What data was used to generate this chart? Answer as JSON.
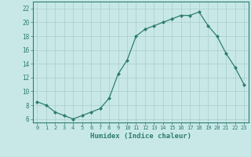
{
  "x": [
    0,
    1,
    2,
    3,
    4,
    5,
    6,
    7,
    8,
    9,
    10,
    11,
    12,
    13,
    14,
    15,
    16,
    17,
    18,
    19,
    20,
    21,
    22,
    23
  ],
  "y": [
    8.5,
    8.0,
    7.0,
    6.5,
    6.0,
    6.5,
    7.0,
    7.5,
    9.0,
    12.5,
    14.5,
    18.0,
    19.0,
    19.5,
    20.0,
    20.5,
    21.0,
    21.0,
    21.5,
    19.5,
    18.0,
    15.5,
    13.5,
    11.0
  ],
  "line_color": "#2e7d6e",
  "marker": "D",
  "marker_size": 2.0,
  "bg_color": "#c8e8e8",
  "grid_color": "#aacccc",
  "xlabel": "Humidex (Indice chaleur)",
  "xlim": [
    -0.5,
    23.5
  ],
  "ylim": [
    5.5,
    23.0
  ],
  "yticks": [
    6,
    8,
    10,
    12,
    14,
    16,
    18,
    20,
    22
  ],
  "xticks": [
    0,
    1,
    2,
    3,
    4,
    5,
    6,
    7,
    8,
    9,
    10,
    11,
    12,
    13,
    14,
    15,
    16,
    17,
    18,
    19,
    20,
    21,
    22,
    23
  ]
}
